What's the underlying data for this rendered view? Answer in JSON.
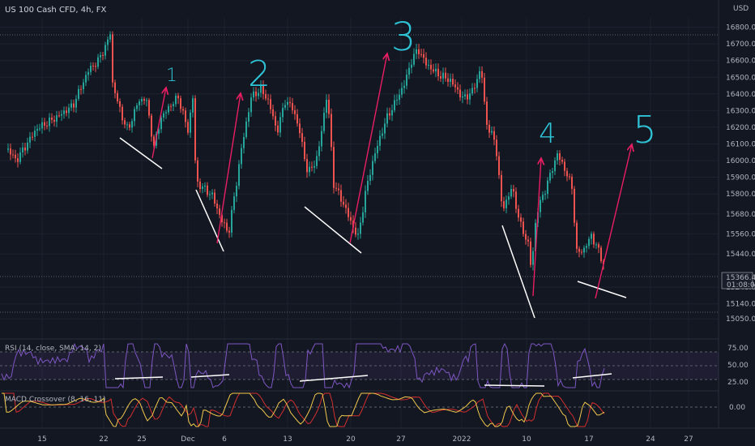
{
  "symbol": "US 100 Cash CFD, 4h, FX",
  "currency": "USD",
  "colors": {
    "background": "#131722",
    "grid": "#1e2230",
    "up": "#26a69a",
    "down": "#ef5350",
    "trendline": "#ffffff",
    "arrow": "#e91e63",
    "wave_label": "#2ec4d6",
    "rsi": "#7e57c2",
    "macd": "#f2c94c",
    "signal": "#d32f2f"
  },
  "price_tag": {
    "value": "15366.42",
    "countdown": "01:08:02"
  },
  "rsi": {
    "label": "RSI (14, close, SMA, 14, 2)",
    "ticks": [
      "75.00",
      "50.00",
      "25.00"
    ]
  },
  "macd": {
    "label": "MACD Crossover (8, 16, 11)",
    "ticks": [
      "0.00"
    ]
  },
  "waves": [
    "1",
    "2",
    "3",
    "4",
    "5"
  ],
  "chart_data": {
    "type": "candlestick",
    "title": "US 100 Cash CFD, 4h, FX",
    "y_ticks": [
      16800,
      16700,
      16600,
      16500,
      16400,
      16300,
      16200,
      16100,
      16000,
      15900,
      15800,
      15680,
      15560,
      15440,
      15240,
      15140,
      15050
    ],
    "x_ticks": [
      "15",
      "22",
      "25",
      "Dec",
      "6",
      "13",
      "20",
      "27",
      "2022",
      "10",
      "17",
      "24",
      "27"
    ],
    "last_price": 15366.42,
    "path": [
      [
        0,
        16130
      ],
      [
        20,
        16000
      ],
      [
        45,
        16190
      ],
      [
        70,
        16260
      ],
      [
        90,
        16330
      ],
      [
        110,
        16550
      ],
      [
        120,
        16590
      ],
      [
        132,
        16700
      ],
      [
        136,
        16770
      ],
      [
        138,
        16480
      ],
      [
        150,
        16270
      ],
      [
        158,
        16180
      ],
      [
        170,
        16350
      ],
      [
        180,
        16380
      ],
      [
        190,
        16080
      ],
      [
        198,
        16250
      ],
      [
        210,
        16330
      ],
      [
        220,
        16380
      ],
      [
        232,
        16180
      ],
      [
        238,
        16380
      ],
      [
        242,
        15870
      ],
      [
        250,
        15840
      ],
      [
        262,
        15790
      ],
      [
        272,
        15660
      ],
      [
        282,
        15560
      ],
      [
        292,
        15870
      ],
      [
        298,
        16070
      ],
      [
        310,
        16380
      ],
      [
        322,
        16430
      ],
      [
        332,
        16350
      ],
      [
        342,
        16170
      ],
      [
        352,
        16360
      ],
      [
        362,
        16310
      ],
      [
        370,
        16170
      ],
      [
        380,
        15920
      ],
      [
        392,
        16020
      ],
      [
        404,
        16410
      ],
      [
        412,
        15860
      ],
      [
        424,
        15740
      ],
      [
        434,
        15620
      ],
      [
        442,
        15540
      ],
      [
        452,
        15830
      ],
      [
        462,
        16030
      ],
      [
        476,
        16240
      ],
      [
        490,
        16370
      ],
      [
        500,
        16470
      ],
      [
        508,
        16600
      ],
      [
        516,
        16670
      ],
      [
        526,
        16580
      ],
      [
        540,
        16520
      ],
      [
        556,
        16480
      ],
      [
        572,
        16370
      ],
      [
        584,
        16420
      ],
      [
        594,
        16560
      ],
      [
        600,
        16230
      ],
      [
        612,
        16100
      ],
      [
        620,
        15700
      ],
      [
        632,
        15840
      ],
      [
        642,
        15620
      ],
      [
        652,
        15500
      ],
      [
        656,
        15340
      ],
      [
        662,
        15680
      ],
      [
        674,
        15840
      ],
      [
        688,
        16040
      ],
      [
        698,
        15940
      ],
      [
        706,
        15840
      ],
      [
        712,
        15450
      ],
      [
        720,
        15460
      ],
      [
        730,
        15550
      ],
      [
        738,
        15470
      ],
      [
        746,
        15366
      ]
    ]
  }
}
